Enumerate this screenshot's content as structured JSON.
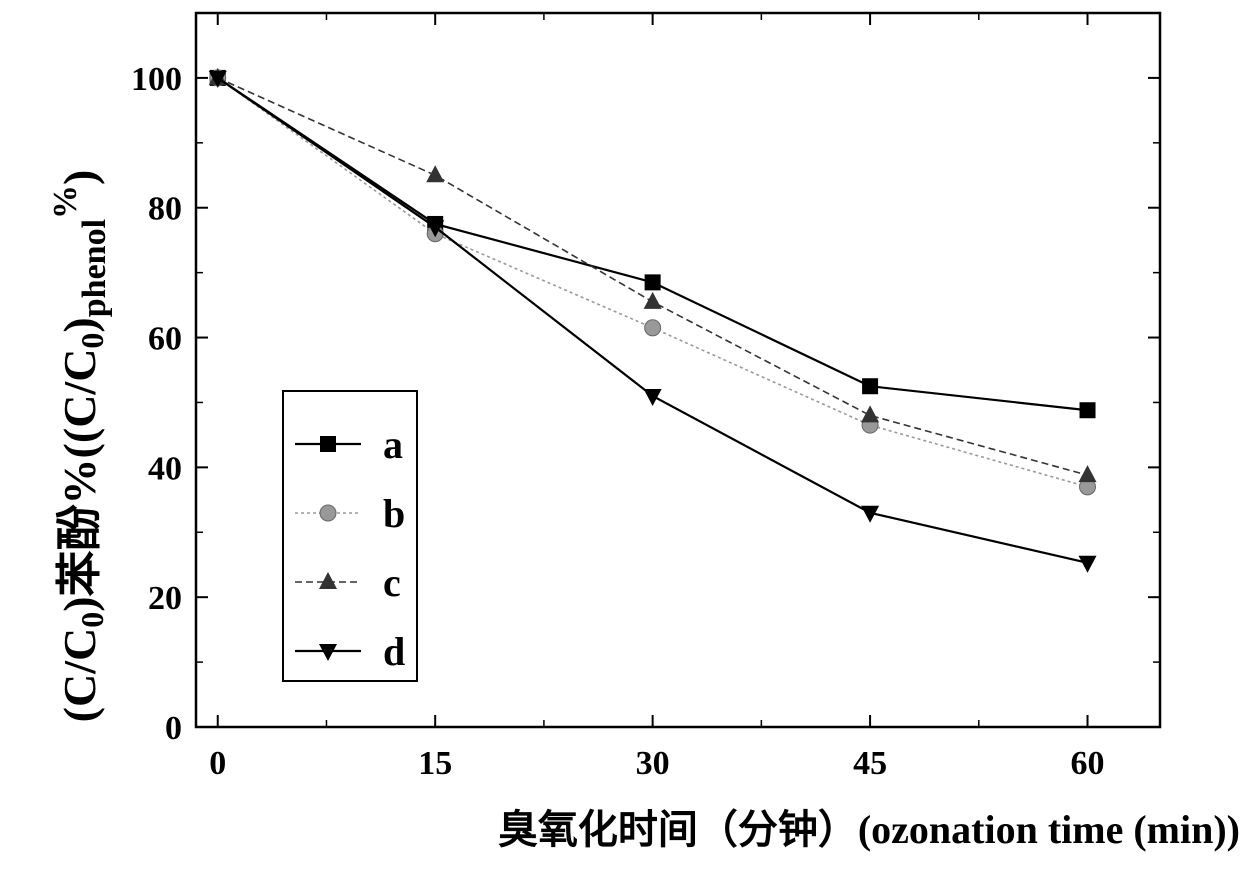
{
  "chart_data": {
    "type": "line",
    "xlabel": "臭氧化时间（分钟）(ozonation time (min))",
    "ylabel": {
      "paren_open": "(",
      "c_over": "C/C",
      "sub0": "0",
      "paren_close": ")",
      "cn": "苯酚%(",
      "c_over_2": "(C/C",
      "sub0_2": "0",
      "paren_close_2": ")",
      "sub_phenol": "phenol",
      "sup_percent": "%",
      "tail": ")"
    },
    "x": [
      0,
      15,
      30,
      45,
      60
    ],
    "x_ticks": [
      0,
      15,
      30,
      45,
      60
    ],
    "x_tick_labels": [
      "0",
      "15",
      "30",
      "45",
      "60"
    ],
    "y_ticks": [
      0,
      20,
      40,
      60,
      80,
      100
    ],
    "y_tick_labels": [
      "0",
      "20",
      "40",
      "60",
      "80",
      "100"
    ],
    "xlim": [
      -1.5,
      65
    ],
    "ylim": [
      0,
      110
    ],
    "grid": false,
    "legend_position": "lower-left",
    "series": [
      {
        "name": "a",
        "values": [
          100,
          77.5,
          68.5,
          52.5,
          48.8
        ],
        "marker": "square",
        "color": "#000000",
        "dash": "solid"
      },
      {
        "name": "b",
        "values": [
          100,
          76,
          61.5,
          46.5,
          37
        ],
        "marker": "diamond",
        "color": "#999999",
        "dash": "dotted"
      },
      {
        "name": "c",
        "values": [
          100,
          85,
          65.5,
          48,
          38.8
        ],
        "marker": "triangle-up",
        "color": "#333333",
        "dash": "dashed"
      },
      {
        "name": "d",
        "values": [
          100,
          77,
          51,
          33,
          25.3
        ],
        "marker": "triangle-down",
        "color": "#000000",
        "dash": "solid"
      }
    ]
  }
}
